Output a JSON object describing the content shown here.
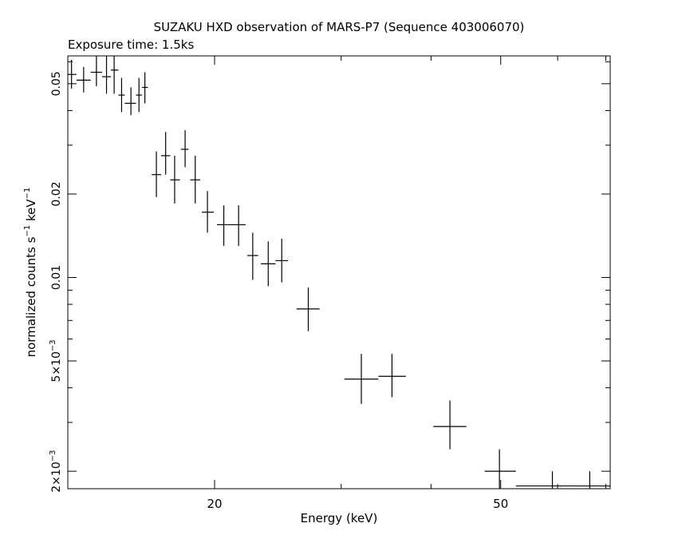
{
  "chart_data": {
    "type": "scatter",
    "title": "SUZAKU HXD observation of MARS-P7 (Sequence 403006070)",
    "subtitle": "Exposure time: 1.5ks",
    "xlabel": "Energy (keV)",
    "ylabel": "normalized counts s",
    "ylabel_sup1": "−1",
    "ylabel_mid": " keV",
    "ylabel_sup2": "−1",
    "x_scale": "log",
    "y_scale": "log",
    "xlim": [
      12.5,
      71
    ],
    "ylim": [
      0.00173,
      0.063
    ],
    "x_ticks": [
      {
        "value": 20,
        "label": "20"
      },
      {
        "value": 50,
        "label": "50"
      }
    ],
    "y_ticks": [
      {
        "value": 0.002,
        "label": "2×10",
        "sup": "−3"
      },
      {
        "value": 0.005,
        "label": "5×10",
        "sup": "−3"
      },
      {
        "value": 0.01,
        "label": "0.01"
      },
      {
        "value": 0.02,
        "label": "0.02"
      },
      {
        "value": 0.05,
        "label": "0.05"
      }
    ],
    "grid": false,
    "legend": "none",
    "color": "#000000",
    "points": [
      {
        "x": 12.65,
        "xlo": 12.5,
        "xhi": 12.85,
        "y": 0.054,
        "ylo": 0.048,
        "yhi": 0.061
      },
      {
        "x": 13.15,
        "xlo": 12.85,
        "xhi": 13.45,
        "y": 0.0515,
        "ylo": 0.0465,
        "yhi": 0.0575
      },
      {
        "x": 13.7,
        "xlo": 13.45,
        "xhi": 13.95,
        "y": 0.055,
        "ylo": 0.049,
        "yhi": 0.063
      },
      {
        "x": 14.15,
        "xlo": 13.95,
        "xhi": 14.35,
        "y": 0.053,
        "ylo": 0.046,
        "yhi": 0.063
      },
      {
        "x": 14.5,
        "xlo": 14.35,
        "xhi": 14.7,
        "y": 0.056,
        "ylo": 0.046,
        "yhi": 0.063
      },
      {
        "x": 14.85,
        "xlo": 14.7,
        "xhi": 15.0,
        "y": 0.0455,
        "ylo": 0.0395,
        "yhi": 0.0525
      },
      {
        "x": 15.3,
        "xlo": 15.0,
        "xhi": 15.55,
        "y": 0.0425,
        "ylo": 0.0385,
        "yhi": 0.0485
      },
      {
        "x": 15.7,
        "xlo": 15.55,
        "xhi": 15.85,
        "y": 0.0455,
        "ylo": 0.0395,
        "yhi": 0.0525
      },
      {
        "x": 16.0,
        "xlo": 15.85,
        "xhi": 16.15,
        "y": 0.0485,
        "ylo": 0.0425,
        "yhi": 0.055
      },
      {
        "x": 16.6,
        "xlo": 16.35,
        "xhi": 16.85,
        "y": 0.0235,
        "ylo": 0.0195,
        "yhi": 0.0285
      },
      {
        "x": 17.1,
        "xlo": 16.85,
        "xhi": 17.35,
        "y": 0.0275,
        "ylo": 0.0235,
        "yhi": 0.0335
      },
      {
        "x": 17.6,
        "xlo": 17.35,
        "xhi": 17.9,
        "y": 0.0225,
        "ylo": 0.0185,
        "yhi": 0.0275
      },
      {
        "x": 18.2,
        "xlo": 17.95,
        "xhi": 18.4,
        "y": 0.029,
        "ylo": 0.025,
        "yhi": 0.034
      },
      {
        "x": 18.8,
        "xlo": 18.5,
        "xhi": 19.1,
        "y": 0.0225,
        "ylo": 0.0185,
        "yhi": 0.0275
      },
      {
        "x": 19.55,
        "xlo": 19.2,
        "xhi": 19.95,
        "y": 0.0172,
        "ylo": 0.0145,
        "yhi": 0.0205
      },
      {
        "x": 20.6,
        "xlo": 20.15,
        "xhi": 21.05,
        "y": 0.0155,
        "ylo": 0.013,
        "yhi": 0.0182
      },
      {
        "x": 21.6,
        "xlo": 21.05,
        "xhi": 22.1,
        "y": 0.0155,
        "ylo": 0.013,
        "yhi": 0.0182
      },
      {
        "x": 22.6,
        "xlo": 22.2,
        "xhi": 23.0,
        "y": 0.012,
        "ylo": 0.0098,
        "yhi": 0.0145
      },
      {
        "x": 23.75,
        "xlo": 23.2,
        "xhi": 24.3,
        "y": 0.0112,
        "ylo": 0.0093,
        "yhi": 0.0135
      },
      {
        "x": 24.8,
        "xlo": 24.3,
        "xhi": 25.3,
        "y": 0.0115,
        "ylo": 0.0096,
        "yhi": 0.0138
      },
      {
        "x": 27.0,
        "xlo": 26.0,
        "xhi": 28.0,
        "y": 0.0077,
        "ylo": 0.0064,
        "yhi": 0.0092
      },
      {
        "x": 32.0,
        "xlo": 30.3,
        "xhi": 33.8,
        "y": 0.0043,
        "ylo": 0.0035,
        "yhi": 0.0053
      },
      {
        "x": 35.3,
        "xlo": 33.8,
        "xhi": 36.9,
        "y": 0.0044,
        "ylo": 0.0037,
        "yhi": 0.0053
      },
      {
        "x": 42.5,
        "xlo": 40.3,
        "xhi": 44.8,
        "y": 0.0029,
        "ylo": 0.0024,
        "yhi": 0.0036
      },
      {
        "x": 49.8,
        "xlo": 47.5,
        "xhi": 52.5,
        "y": 0.002,
        "ylo": 0.00163,
        "yhi": 0.0024
      },
      {
        "x": 59.0,
        "xlo": 52.5,
        "xhi": 64.0,
        "y": 0.00177,
        "ylo": 0.00173,
        "yhi": 0.002
      },
      {
        "x": 66.5,
        "xlo": 64.0,
        "xhi": 71.0,
        "y": 0.00177,
        "ylo": 0.00173,
        "yhi": 0.002
      }
    ]
  }
}
